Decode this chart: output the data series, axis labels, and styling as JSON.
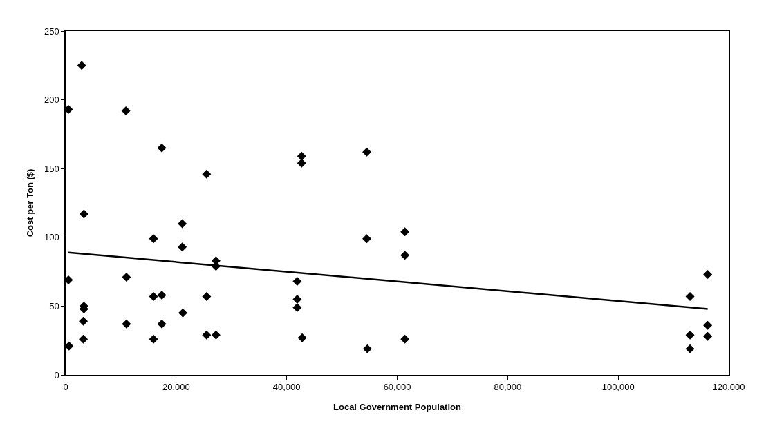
{
  "chart_data": {
    "type": "scatter",
    "xlabel": "Local Government Population",
    "ylabel": "Cost per Ton ($)",
    "xlim": [
      0,
      120000
    ],
    "ylim": [
      0,
      250
    ],
    "xticks": [
      0,
      {
        "value": 20000,
        "label": "20,000"
      },
      {
        "value": 40000,
        "label": "40,000"
      },
      {
        "value": 60000,
        "label": "60,000"
      },
      {
        "value": 80000,
        "label": "80,000"
      },
      {
        "value": 100000,
        "label": "100,000"
      },
      {
        "value": 120000,
        "label": "120,000"
      }
    ],
    "yticks": [
      0,
      50,
      100,
      150,
      200,
      250
    ],
    "marker": "diamond",
    "series": [
      {
        "color": "#000000",
        "x": [
          500,
          2900,
          3300,
          500,
          3300,
          3300,
          3200,
          3200,
          600,
          10900,
          11000,
          11000,
          17400,
          15900,
          15900,
          17400,
          17400,
          15900,
          21100,
          21100,
          21200,
          25500,
          25500,
          25500,
          27200,
          27200,
          27200,
          42700,
          42700,
          41900,
          41900,
          41900,
          42800,
          54500,
          54500,
          54600,
          61400,
          61400,
          61400,
          113000,
          113000,
          113000,
          116200,
          116200,
          116200
        ],
        "values": [
          193,
          225,
          117,
          69,
          50,
          48,
          39,
          26,
          21,
          192,
          71,
          37,
          165,
          99,
          57,
          58,
          37,
          26,
          110,
          93,
          45,
          146,
          57,
          29,
          83,
          79,
          29,
          159,
          154,
          68,
          55,
          49,
          27,
          162,
          99,
          19,
          104,
          87,
          26,
          57,
          29,
          19,
          73,
          36,
          28
        ]
      },
      {
        "type": "line",
        "color": "#000000",
        "marker": "none",
        "line_style": "solid",
        "x": [
          500,
          116200
        ],
        "values": [
          89,
          48
        ]
      }
    ]
  }
}
